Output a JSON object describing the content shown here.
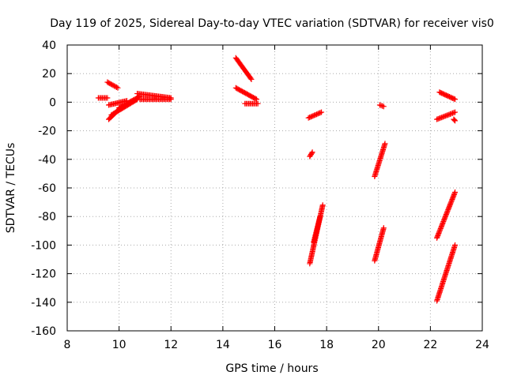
{
  "chart_data": {
    "type": "scatter",
    "title": "Day 119 of 2025, Sidereal Day-to-day VTEC variation (SDTVAR) for receiver vis0",
    "xlabel": "GPS time / hours",
    "ylabel": "SDTVAR / TECUs",
    "xlim": [
      8,
      24
    ],
    "ylim": [
      -160,
      40
    ],
    "xticks": [
      8,
      10,
      12,
      14,
      16,
      18,
      20,
      22,
      24
    ],
    "yticks": [
      -160,
      -140,
      -120,
      -100,
      -80,
      -60,
      -40,
      -20,
      0,
      20,
      40
    ],
    "grid": true,
    "marker": "+",
    "color": "#ff0000",
    "segments": [
      {
        "x": [
          9.2,
          9.55
        ],
        "y": [
          3,
          3
        ]
      },
      {
        "x": [
          9.55,
          9.95
        ],
        "y": [
          14,
          10
        ]
      },
      {
        "x": [
          9.6,
          10.0
        ],
        "y": [
          -12,
          -5
        ]
      },
      {
        "x": [
          9.6,
          10.3
        ],
        "y": [
          -2,
          1
        ]
      },
      {
        "x": [
          9.7,
          10.7
        ],
        "y": [
          -9,
          2
        ]
      },
      {
        "x": [
          10.0,
          10.8
        ],
        "y": [
          -4,
          4
        ]
      },
      {
        "x": [
          10.7,
          12.0
        ],
        "y": [
          6,
          3
        ]
      },
      {
        "x": [
          10.8,
          12.0
        ],
        "y": [
          2,
          2
        ]
      },
      {
        "x": [
          14.5,
          15.1
        ],
        "y": [
          31,
          16
        ]
      },
      {
        "x": [
          14.5,
          15.3
        ],
        "y": [
          10,
          2
        ]
      },
      {
        "x": [
          14.85,
          15.35
        ],
        "y": [
          -1,
          -1
        ]
      },
      {
        "x": [
          17.3,
          17.8
        ],
        "y": [
          -11,
          -7
        ]
      },
      {
        "x": [
          17.35,
          17.45
        ],
        "y": [
          -38,
          -35
        ]
      },
      {
        "x": [
          17.35,
          17.85
        ],
        "y": [
          -113,
          -72
        ]
      },
      {
        "x": [
          17.5,
          17.75
        ],
        "y": [
          -98,
          -80
        ]
      },
      {
        "x": [
          19.85,
          20.25
        ],
        "y": [
          -52,
          -29
        ]
      },
      {
        "x": [
          20.05,
          20.2
        ],
        "y": [
          -2,
          -3
        ]
      },
      {
        "x": [
          19.85,
          20.2
        ],
        "y": [
          -111,
          -88
        ]
      },
      {
        "x": [
          22.35,
          22.95
        ],
        "y": [
          7,
          2
        ]
      },
      {
        "x": [
          22.25,
          22.95
        ],
        "y": [
          -12,
          -7
        ]
      },
      {
        "x": [
          22.9,
          22.95
        ],
        "y": [
          -12,
          -13
        ]
      },
      {
        "x": [
          22.25,
          22.95
        ],
        "y": [
          -95,
          -63
        ]
      },
      {
        "x": [
          22.25,
          22.95
        ],
        "y": [
          -139,
          -100
        ]
      }
    ]
  }
}
